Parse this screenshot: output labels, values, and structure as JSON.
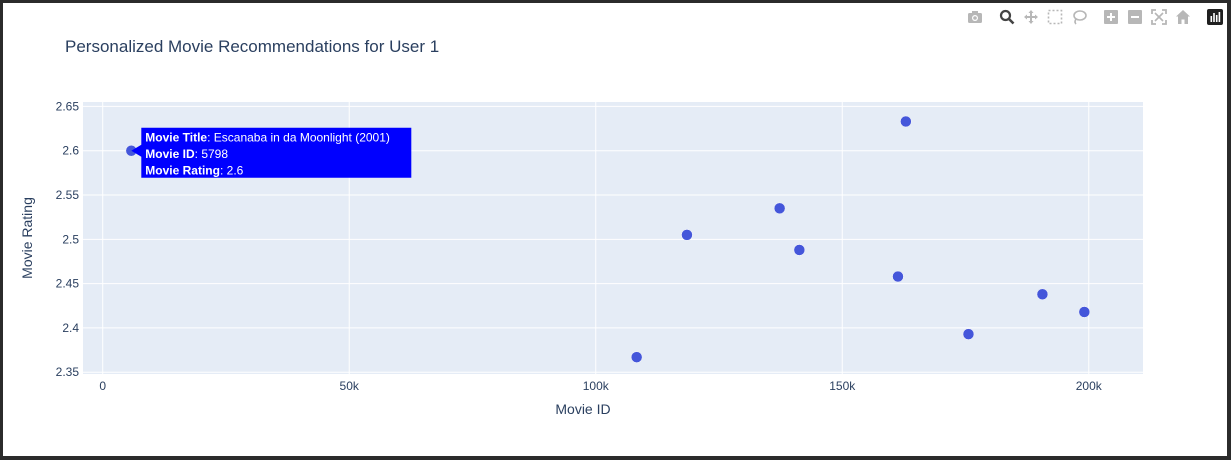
{
  "modebar": {
    "icons": [
      "camera-icon",
      "zoom-icon",
      "pan-icon",
      "box-select-icon",
      "lasso-select-icon",
      "zoom-in-icon",
      "zoom-out-icon",
      "autoscale-icon",
      "reset-axes-icon",
      "plotly-logo-icon"
    ]
  },
  "colors": {
    "marker": "#3b4ed8",
    "plot_bg": "#e5ecf6",
    "grid": "#ffffff",
    "text": "#2a3f5f",
    "hover_bg": "#0000ff",
    "hover_text": "#ffffff"
  },
  "chart_data": {
    "type": "scatter",
    "title": "Personalized Movie Recommendations for User 1",
    "xlabel": "Movie ID",
    "ylabel": "Movie Rating",
    "xlim": [
      -4000,
      211000
    ],
    "ylim": [
      2.348,
      2.655
    ],
    "xticks": [
      0,
      50000,
      100000,
      150000,
      200000
    ],
    "xticklabels": [
      "0",
      "50k",
      "100k",
      "150k",
      "200k"
    ],
    "yticks": [
      2.35,
      2.4,
      2.45,
      2.5,
      2.55,
      2.6,
      2.65
    ],
    "yticklabels": [
      "2.35",
      "2.4",
      "2.45",
      "2.5",
      "2.55",
      "2.6",
      "2.65"
    ],
    "grid": true,
    "x": [
      5798,
      108300,
      118500,
      137300,
      141300,
      161300,
      162900,
      175600,
      190600,
      199100
    ],
    "y": [
      2.6,
      2.367,
      2.505,
      2.535,
      2.488,
      2.458,
      2.633,
      2.393,
      2.438,
      2.418
    ],
    "hover": {
      "lines": [
        {
          "key": "Movie Title",
          "value": "Escanaba in da Moonlight (2001)"
        },
        {
          "key": "Movie ID",
          "value": "5798"
        },
        {
          "key": "Movie Rating",
          "value": "2.6"
        }
      ]
    }
  }
}
